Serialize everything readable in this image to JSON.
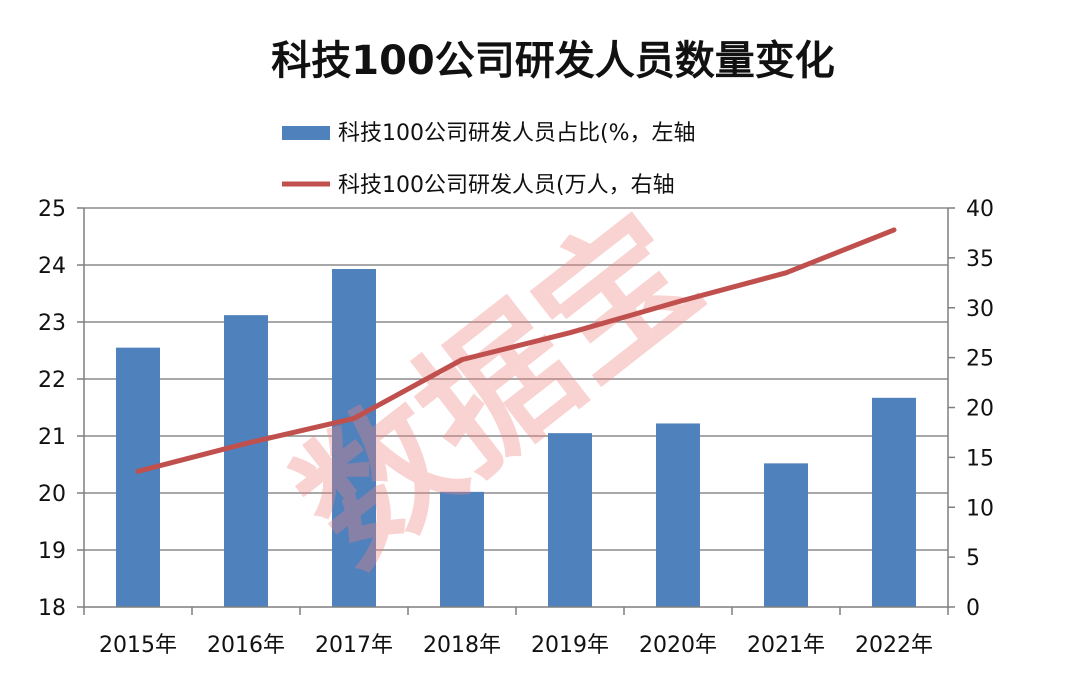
{
  "chart_data": {
    "type": "bar",
    "title": "科技100公司研发人员数量变化",
    "categories": [
      "2015年",
      "2016年",
      "2017年",
      "2018年",
      "2019年",
      "2020年",
      "2021年",
      "2022年"
    ],
    "series": [
      {
        "name": "科技100公司研发人员占比(%，左轴",
        "type": "bar",
        "axis": "left",
        "color": "#4f81bd",
        "values": [
          22.55,
          23.12,
          23.93,
          20.02,
          21.05,
          21.22,
          20.52,
          21.67
        ]
      },
      {
        "name": "科技100公司研发人员(万人，右轴",
        "type": "line",
        "axis": "right",
        "color": "#c0504d",
        "values": [
          13.6,
          16.4,
          18.9,
          24.8,
          27.5,
          30.6,
          33.5,
          37.8
        ]
      }
    ],
    "y_left": {
      "min": 18,
      "max": 25,
      "ticks": [
        18,
        19,
        20,
        21,
        22,
        23,
        24,
        25
      ]
    },
    "y_right": {
      "min": 0,
      "max": 40,
      "ticks": [
        0,
        5,
        10,
        15,
        20,
        25,
        30,
        35,
        40
      ]
    },
    "grid": true,
    "legend_position": "top-center"
  },
  "watermark": "数据宝"
}
